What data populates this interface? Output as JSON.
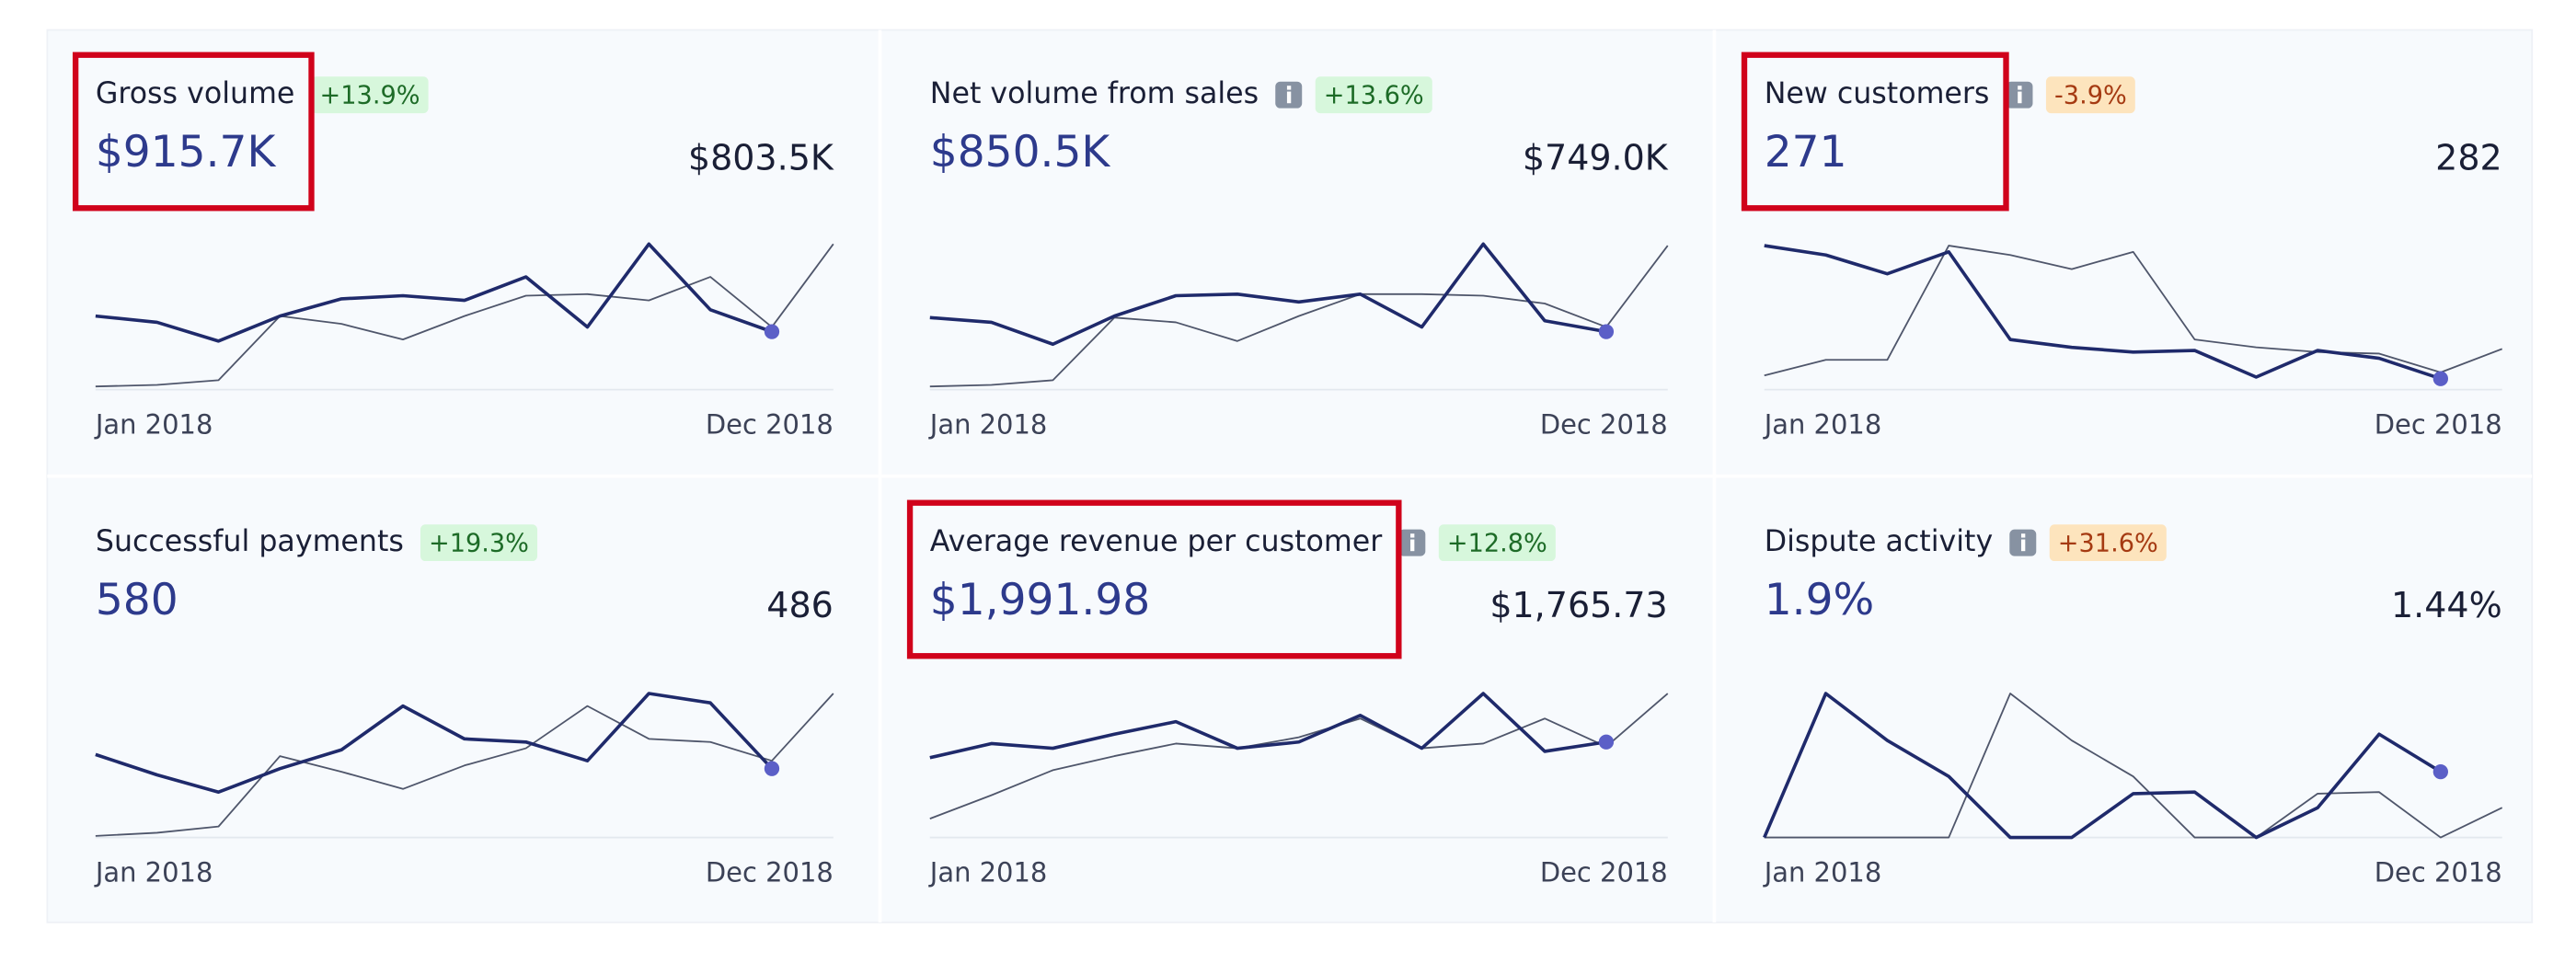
{
  "cards": [
    {
      "title": "Gross volume",
      "change": "+13.9%",
      "badge_color": "#d7f7dc",
      "badge_text_color": "#1d6b27",
      "info": false,
      "highlighted": true,
      "value": "$915.7K",
      "previous": "$803.5K",
      "start_label": "Jan 2018",
      "end_label": "Dec 2018",
      "current": {
        "color": "#1f2a6b",
        "values": [
          47,
          43,
          31,
          47,
          58,
          60,
          57,
          72,
          40,
          93,
          51,
          37,
          null
        ]
      },
      "prior": {
        "color": "#4f566b",
        "values": [
          2,
          3,
          6,
          47,
          42,
          32,
          47,
          60,
          61,
          57,
          72,
          40,
          93
        ]
      }
    },
    {
      "title": "Net volume from sales",
      "change": "+13.6%",
      "badge_color": "#d7f7dc",
      "badge_text_color": "#1d6b27",
      "info": true,
      "highlighted": false,
      "value": "$850.5K",
      "previous": "$749.0K",
      "start_label": "Jan 2018",
      "end_label": "Dec 2018",
      "current": {
        "color": "#1f2a6b",
        "values": [
          46,
          43,
          29,
          47,
          60,
          61,
          56,
          61,
          40,
          93,
          44,
          37,
          null
        ]
      },
      "prior": {
        "color": "#4f566b",
        "values": [
          2,
          3,
          6,
          46,
          43,
          31,
          47,
          61,
          61,
          60,
          55,
          40,
          92
        ]
      }
    },
    {
      "title": "New customers",
      "change": "-3.9%",
      "badge_color": "#fde4bd",
      "badge_text_color": "#a53a12",
      "info": true,
      "highlighted": true,
      "value": "271",
      "previous": "282",
      "start_label": "Jan 2018",
      "end_label": "Dec 2018",
      "current": {
        "color": "#1f2a6b",
        "values": [
          92,
          86,
          74,
          88,
          32,
          27,
          24,
          25,
          8,
          25,
          20,
          7,
          null
        ]
      },
      "prior": {
        "color": "#4f566b",
        "values": [
          9,
          19,
          19,
          92,
          86,
          77,
          88,
          32,
          27,
          24,
          23,
          11,
          26
        ]
      }
    },
    {
      "title": "Successful payments",
      "change": "+19.3%",
      "badge_color": "#d7f7dc",
      "badge_text_color": "#1d6b27",
      "info": false,
      "highlighted": false,
      "value": "580",
      "previous": "486",
      "start_label": "Jan 2018",
      "end_label": "Dec 2018",
      "current": {
        "color": "#1f2a6b",
        "values": [
          53,
          40,
          29,
          44,
          56,
          84,
          63,
          61,
          49,
          92,
          86,
          44,
          null
        ]
      },
      "prior": {
        "color": "#4f566b",
        "values": [
          1,
          3,
          7,
          52,
          42,
          31,
          46,
          57,
          84,
          63,
          61,
          49,
          92
        ]
      }
    },
    {
      "title": "Average revenue per customer",
      "change": "+12.8%",
      "badge_color": "#d7f7dc",
      "badge_text_color": "#1d6b27",
      "info": true,
      "highlighted": true,
      "value": "$1,991.98",
      "previous": "$1,765.73",
      "start_label": "Jan 2018",
      "end_label": "Dec 2018",
      "current": {
        "color": "#1f2a6b",
        "values": [
          51,
          60,
          57,
          66,
          74,
          57,
          61,
          78,
          57,
          92,
          55,
          61,
          null
        ]
      },
      "prior": {
        "color": "#4f566b",
        "values": [
          12,
          27,
          43,
          52,
          60,
          57,
          64,
          76,
          57,
          60,
          76,
          58,
          92
        ]
      }
    },
    {
      "title": "Dispute activity",
      "change": "+31.6%",
      "badge_color": "#fde4bd",
      "badge_text_color": "#a53a12",
      "info": true,
      "highlighted": false,
      "value": "1.9%",
      "previous": "1.44%",
      "start_label": "Jan 2018",
      "end_label": "Dec 2018",
      "current": {
        "color": "#1f2a6b",
        "values": [
          0,
          92,
          62,
          39,
          0,
          0,
          28,
          29,
          0,
          19,
          66,
          42,
          null
        ]
      },
      "prior": {
        "color": "#4f566b",
        "values": [
          0,
          0,
          0,
          0,
          92,
          62,
          39,
          0,
          0,
          28,
          29,
          0,
          19
        ]
      }
    }
  ]
}
